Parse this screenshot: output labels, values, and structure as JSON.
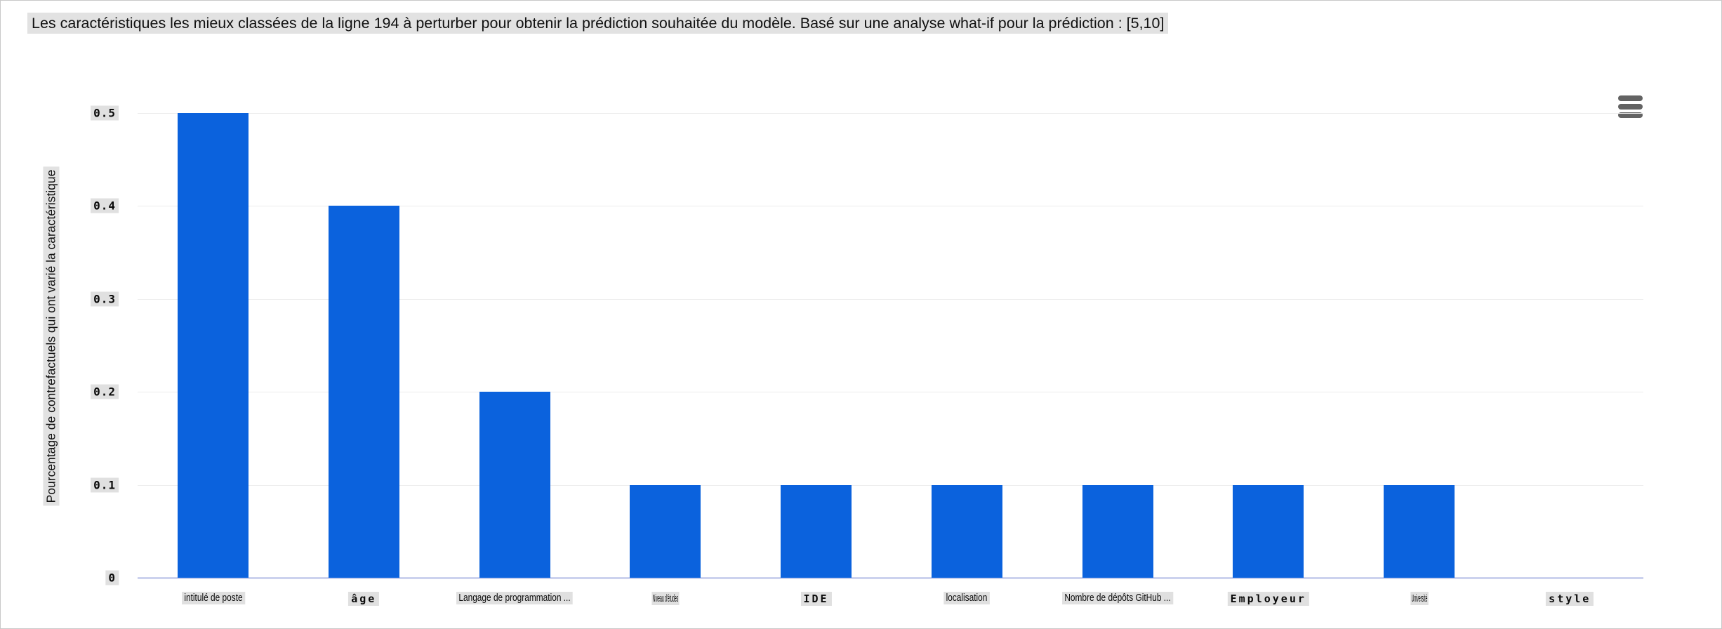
{
  "title": "Les caractéristiques les mieux classées de la ligne 194 à perturber pour obtenir la prédiction souhaitée du modèle. Basé sur une analyse what-if pour la prédiction : [5,10]",
  "menu": {
    "icon": "hamburger-menu-icon"
  },
  "colors": {
    "bar": "#0b62dd",
    "gridline": "#ececec",
    "baseline": "#ccd2ee",
    "label_background": "#e0e0e0",
    "menu_icon": "#636363"
  },
  "chart_data": {
    "type": "bar",
    "title": "Les caractéristiques les mieux classées de la ligne 194 à perturber pour obtenir la prédiction souhaitée du modèle. Basé sur une analyse what-if pour la prédiction : [5,10]",
    "xlabel": "",
    "ylabel": "Pourcentage de contrefactuels qui ont varié la caractéristique",
    "ylim": [
      0,
      0.5
    ],
    "yticks": [
      "0",
      "0.1",
      "0.2",
      "0.3",
      "0.4",
      "0.5"
    ],
    "grid": true,
    "legend": false,
    "categories": [
      "intitulé de poste",
      "âge",
      "Langage de programmation ...",
      "Niveau d'études",
      "IDE",
      "localisation",
      "Nombre de dépôts GitHub ...",
      "Employeur",
      "Université",
      "style"
    ],
    "values": [
      0.5,
      0.4,
      0.2,
      0.1,
      0.1,
      0.1,
      0.1,
      0.1,
      0.1,
      0
    ],
    "label_styles": [
      "condensed",
      "wide",
      "condensed",
      "squished",
      "wide",
      "condensed",
      "condensed",
      "wide",
      "squished",
      "wide"
    ]
  }
}
